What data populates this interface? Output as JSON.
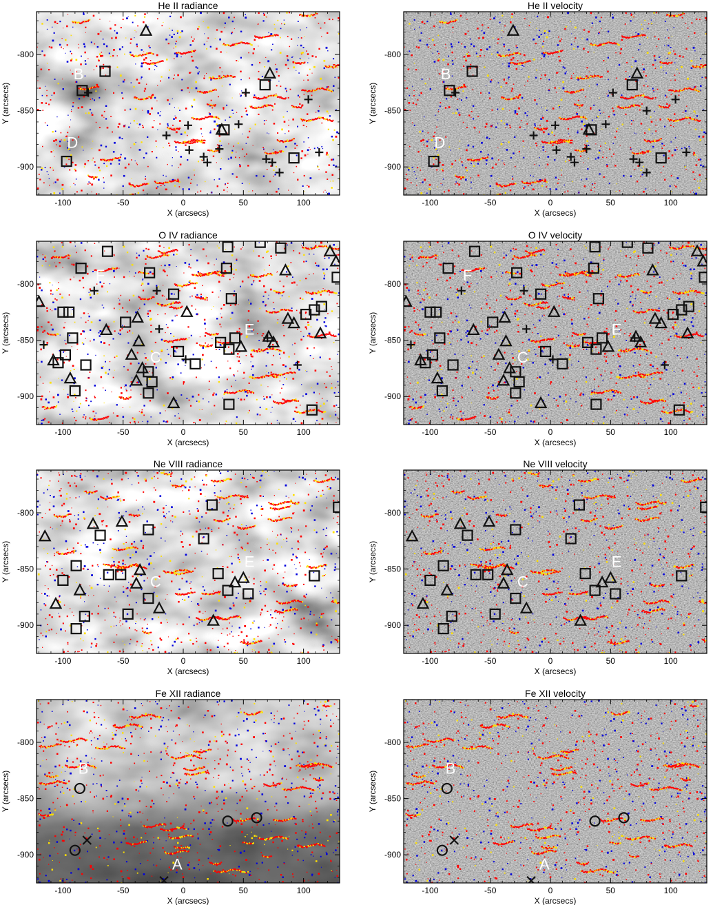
{
  "chart_data": [
    {
      "type": "scatter",
      "title": "He II radiance",
      "xlabel": "X (arcsecs)",
      "ylabel": "Y (arcsecs)",
      "xlim": [
        -122,
        130
      ],
      "ylim": [
        -925,
        -762
      ],
      "xticks": [
        -100,
        -50,
        0,
        50,
        100
      ],
      "yticks": [
        -800,
        -850,
        -900
      ],
      "background": "radiance",
      "letters": [
        {
          "text": "B",
          "x": -87,
          "y": -822
        },
        {
          "text": "D",
          "x": -92,
          "y": -883
        }
      ],
      "squares": [
        [
          -84,
          -832
        ],
        [
          -65,
          -815
        ],
        [
          -97,
          -895
        ],
        [
          34,
          -867
        ],
        [
          68,
          -827
        ],
        [
          92,
          -892
        ]
      ],
      "triangles": [
        [
          -31,
          -779
        ],
        [
          72,
          -817
        ],
        [
          32,
          -867
        ]
      ],
      "crosses": [
        [
          -79,
          -834
        ],
        [
          -14,
          -872
        ],
        [
          4,
          -863
        ],
        [
          5,
          -885
        ],
        [
          17,
          -891
        ],
        [
          20,
          -896
        ],
        [
          30,
          -884
        ],
        [
          46,
          -862
        ],
        [
          52,
          -834
        ],
        [
          69,
          -893
        ],
        [
          74,
          -896
        ],
        [
          80,
          -905
        ],
        [
          104,
          -840
        ],
        [
          113,
          -887
        ]
      ]
    },
    {
      "type": "scatter",
      "title": "He II velocity",
      "xlabel": "X (arcsecs)",
      "ylabel": "Y (arcsecs)",
      "xlim": [
        -122,
        130
      ],
      "ylim": [
        -925,
        -762
      ],
      "xticks": [
        -100,
        -50,
        0,
        50,
        100
      ],
      "yticks": [
        -800,
        -850,
        -900
      ],
      "background": "velocity",
      "letters": [
        {
          "text": "B",
          "x": -87,
          "y": -822
        },
        {
          "text": "D",
          "x": -92,
          "y": -883
        }
      ],
      "squares": [
        [
          -84,
          -832
        ],
        [
          -65,
          -815
        ],
        [
          -97,
          -895
        ],
        [
          34,
          -867
        ],
        [
          68,
          -827
        ],
        [
          92,
          -892
        ]
      ],
      "triangles": [
        [
          -31,
          -779
        ],
        [
          72,
          -817
        ],
        [
          32,
          -867
        ]
      ],
      "crosses": [
        [
          -79,
          -834
        ],
        [
          -14,
          -872
        ],
        [
          4,
          -863
        ],
        [
          5,
          -885
        ],
        [
          17,
          -891
        ],
        [
          20,
          -896
        ],
        [
          30,
          -884
        ],
        [
          46,
          -862
        ],
        [
          52,
          -834
        ],
        [
          69,
          -893
        ],
        [
          74,
          -896
        ],
        [
          80,
          -905
        ],
        [
          104,
          -840
        ],
        [
          113,
          -887
        ],
        [
          80,
          -850
        ]
      ]
    },
    {
      "type": "scatter",
      "title": "O IV radiance",
      "xlabel": "X (arcsecs)",
      "ylabel": "Y (arcsecs)",
      "xlim": [
        -122,
        130
      ],
      "ylim": [
        -925,
        -762
      ],
      "xticks": [
        -100,
        -50,
        0,
        50,
        100
      ],
      "yticks": [
        -800,
        -850,
        -900
      ],
      "background": "radiance",
      "letters": [
        {
          "text": "F",
          "x": -69,
          "y": -797
        },
        {
          "text": "C",
          "x": -23,
          "y": -870
        },
        {
          "text": "E",
          "x": 55,
          "y": -845
        }
      ],
      "squares": [
        [
          -85,
          -786
        ],
        [
          -63,
          -771
        ],
        [
          -28,
          -790
        ],
        [
          -8,
          -809
        ],
        [
          37,
          -767
        ],
        [
          64,
          -763
        ],
        [
          81,
          -768
        ],
        [
          128,
          -794
        ],
        [
          36,
          -786
        ],
        [
          40,
          -813
        ],
        [
          -100,
          -825
        ],
        [
          -95,
          -825
        ],
        [
          -48,
          -834
        ],
        [
          -92,
          -848
        ],
        [
          -98,
          -863
        ],
        [
          -104,
          -870
        ],
        [
          -81,
          -872
        ],
        [
          -90,
          -895
        ],
        [
          -4,
          -860
        ],
        [
          10,
          -871
        ],
        [
          -29,
          -878
        ],
        [
          -26,
          -887
        ],
        [
          -29,
          -897
        ],
        [
          31,
          -852
        ],
        [
          38,
          -858
        ],
        [
          43,
          -848
        ],
        [
          38,
          -907
        ],
        [
          102,
          -827
        ],
        [
          109,
          -823
        ],
        [
          115,
          -820
        ],
        [
          107,
          -912
        ]
      ],
      "triangles": [
        [
          -120,
          -816
        ],
        [
          -108,
          -868
        ],
        [
          -64,
          -841
        ],
        [
          -38,
          -830
        ],
        [
          -37,
          -851
        ],
        [
          -43,
          -863
        ],
        [
          -39,
          -886
        ],
        [
          -34,
          -875
        ],
        [
          -8,
          -906
        ],
        [
          3,
          -825
        ],
        [
          48,
          -856
        ],
        [
          75,
          -852
        ],
        [
          71,
          -847
        ],
        [
          87,
          -831
        ],
        [
          92,
          -835
        ],
        [
          85,
          -788
        ],
        [
          114,
          -844
        ],
        [
          122,
          -771
        ],
        [
          127,
          -780
        ],
        [
          -94,
          -884
        ]
      ],
      "crosses": [
        [
          -116,
          -854
        ],
        [
          -74,
          -806
        ],
        [
          -22,
          -806
        ],
        [
          -20,
          -840
        ],
        [
          2,
          -867
        ],
        [
          95,
          -872
        ],
        [
          70,
          -848
        ]
      ]
    },
    {
      "type": "scatter",
      "title": "O IV velocity",
      "xlabel": "X (arcsecs)",
      "ylabel": "Y (arcsecs)",
      "xlim": [
        -122,
        130
      ],
      "ylim": [
        -925,
        -762
      ],
      "xticks": [
        -100,
        -50,
        0,
        50,
        100
      ],
      "yticks": [
        -800,
        -850,
        -900
      ],
      "background": "velocity",
      "letters": [
        {
          "text": "F",
          "x": -69,
          "y": -797
        },
        {
          "text": "C",
          "x": -23,
          "y": -870
        },
        {
          "text": "E",
          "x": 55,
          "y": -845
        }
      ],
      "squares": [
        [
          -85,
          -786
        ],
        [
          -63,
          -771
        ],
        [
          -28,
          -790
        ],
        [
          -8,
          -809
        ],
        [
          37,
          -767
        ],
        [
          64,
          -763
        ],
        [
          81,
          -768
        ],
        [
          128,
          -794
        ],
        [
          36,
          -786
        ],
        [
          40,
          -813
        ],
        [
          -100,
          -825
        ],
        [
          -95,
          -825
        ],
        [
          -48,
          -834
        ],
        [
          -92,
          -848
        ],
        [
          -98,
          -863
        ],
        [
          -104,
          -870
        ],
        [
          -81,
          -872
        ],
        [
          -90,
          -895
        ],
        [
          -4,
          -860
        ],
        [
          10,
          -871
        ],
        [
          -29,
          -878
        ],
        [
          -26,
          -887
        ],
        [
          -29,
          -897
        ],
        [
          31,
          -852
        ],
        [
          38,
          -858
        ],
        [
          43,
          -848
        ],
        [
          38,
          -907
        ],
        [
          102,
          -827
        ],
        [
          109,
          -823
        ],
        [
          115,
          -820
        ],
        [
          107,
          -912
        ]
      ],
      "triangles": [
        [
          -120,
          -816
        ],
        [
          -108,
          -868
        ],
        [
          -64,
          -841
        ],
        [
          -38,
          -830
        ],
        [
          -37,
          -851
        ],
        [
          -43,
          -863
        ],
        [
          -39,
          -886
        ],
        [
          -34,
          -875
        ],
        [
          -8,
          -906
        ],
        [
          3,
          -825
        ],
        [
          48,
          -856
        ],
        [
          75,
          -852
        ],
        [
          71,
          -847
        ],
        [
          87,
          -831
        ],
        [
          92,
          -835
        ],
        [
          85,
          -788
        ],
        [
          114,
          -844
        ],
        [
          122,
          -771
        ],
        [
          127,
          -780
        ],
        [
          -94,
          -884
        ]
      ],
      "crosses": [
        [
          -116,
          -854
        ],
        [
          -74,
          -806
        ],
        [
          -22,
          -806
        ],
        [
          -20,
          -840
        ],
        [
          2,
          -867
        ],
        [
          95,
          -872
        ],
        [
          70,
          -848
        ]
      ]
    },
    {
      "type": "scatter",
      "title": "Ne VIII radiance",
      "xlabel": "X (arcsecs)",
      "ylabel": "Y (arcsecs)",
      "xlim": [
        -122,
        130
      ],
      "ylim": [
        -925,
        -762
      ],
      "xticks": [
        -100,
        -50,
        0,
        50,
        100
      ],
      "yticks": [
        -800,
        -850,
        -900
      ],
      "background": "radiance",
      "letters": [
        {
          "text": "C",
          "x": -23,
          "y": -866
        },
        {
          "text": "E",
          "x": 55,
          "y": -848
        }
      ],
      "squares": [
        [
          -69,
          -820
        ],
        [
          -29,
          -815
        ],
        [
          24,
          -793
        ],
        [
          17,
          -823
        ],
        [
          -100,
          -860
        ],
        [
          -89,
          -847
        ],
        [
          -62,
          -855
        ],
        [
          -52,
          -855
        ],
        [
          -29,
          -876
        ],
        [
          29,
          -854
        ],
        [
          37,
          -869
        ],
        [
          54,
          -872
        ],
        [
          -82,
          -892
        ],
        [
          -89,
          -903
        ],
        [
          -46,
          -890
        ],
        [
          109,
          -856
        ],
        [
          129,
          -795
        ]
      ],
      "triangles": [
        [
          -115,
          -821
        ],
        [
          -75,
          -810
        ],
        [
          -51,
          -808
        ],
        [
          -36,
          -851
        ],
        [
          -39,
          -863
        ],
        [
          -86,
          -869
        ],
        [
          -106,
          -881
        ],
        [
          -20,
          -885
        ],
        [
          25,
          -896
        ],
        [
          50,
          -858
        ],
        [
          43,
          -862
        ]
      ],
      "crosses": []
    },
    {
      "type": "scatter",
      "title": "Ne VIII velocity",
      "xlabel": "X (arcsecs)",
      "ylabel": "Y (arcsecs)",
      "xlim": [
        -122,
        130
      ],
      "ylim": [
        -925,
        -762
      ],
      "xticks": [
        -100,
        -50,
        0,
        50,
        100
      ],
      "yticks": [
        -800,
        -850,
        -900
      ],
      "background": "velocity",
      "letters": [
        {
          "text": "C",
          "x": -23,
          "y": -866
        },
        {
          "text": "E",
          "x": 55,
          "y": -848
        }
      ],
      "squares": [
        [
          -69,
          -820
        ],
        [
          -29,
          -815
        ],
        [
          24,
          -793
        ],
        [
          17,
          -823
        ],
        [
          -100,
          -860
        ],
        [
          -89,
          -847
        ],
        [
          -62,
          -855
        ],
        [
          -52,
          -855
        ],
        [
          -29,
          -876
        ],
        [
          29,
          -854
        ],
        [
          37,
          -869
        ],
        [
          54,
          -872
        ],
        [
          -82,
          -892
        ],
        [
          -89,
          -903
        ],
        [
          -46,
          -890
        ],
        [
          109,
          -856
        ],
        [
          129,
          -795
        ]
      ],
      "triangles": [
        [
          -115,
          -821
        ],
        [
          -75,
          -810
        ],
        [
          -51,
          -808
        ],
        [
          -36,
          -851
        ],
        [
          -39,
          -863
        ],
        [
          -86,
          -869
        ],
        [
          -106,
          -881
        ],
        [
          -20,
          -885
        ],
        [
          25,
          -896
        ],
        [
          50,
          -858
        ],
        [
          43,
          -862
        ]
      ],
      "crosses": []
    },
    {
      "type": "scatter",
      "title": "Fe XII radiance",
      "xlabel": "X (arcsecs)",
      "ylabel": "Y (arcsecs)",
      "xlim": [
        -122,
        130
      ],
      "ylim": [
        -925,
        -762
      ],
      "xticks": [
        -100,
        -50,
        0,
        50,
        100
      ],
      "yticks": [
        -800,
        -850,
        -900
      ],
      "background": "radiance-corona",
      "letters": [
        {
          "text": "B",
          "x": -83,
          "y": -828
        },
        {
          "text": "A",
          "x": -5,
          "y": -913
        }
      ],
      "circles": [
        [
          -86,
          -841
        ],
        [
          -90,
          -896
        ],
        [
          37,
          -870
        ],
        [
          61,
          -867
        ]
      ],
      "xmarks": [
        [
          -80,
          -887
        ],
        [
          -16,
          -923
        ]
      ]
    },
    {
      "type": "scatter",
      "title": "Fe XII velocity",
      "xlabel": "X (arcsecs)",
      "ylabel": "Y (arcsecs)",
      "xlim": [
        -122,
        130
      ],
      "ylim": [
        -925,
        -762
      ],
      "xticks": [
        -100,
        -50,
        0,
        50,
        100
      ],
      "yticks": [
        -800,
        -850,
        -900
      ],
      "background": "velocity",
      "letters": [
        {
          "text": "B",
          "x": -83,
          "y": -828
        },
        {
          "text": "A",
          "x": -5,
          "y": -913
        }
      ],
      "circles": [
        [
          -86,
          -841
        ],
        [
          -90,
          -896
        ],
        [
          37,
          -870
        ],
        [
          61,
          -867
        ]
      ],
      "xmarks": [
        [
          -80,
          -887
        ],
        [
          -16,
          -923
        ]
      ]
    }
  ],
  "colors": {
    "red": "#ff0000",
    "blue": "#0000dd",
    "yellow": "#ffe000",
    "marker": "#111111",
    "label": "#ffffff"
  }
}
